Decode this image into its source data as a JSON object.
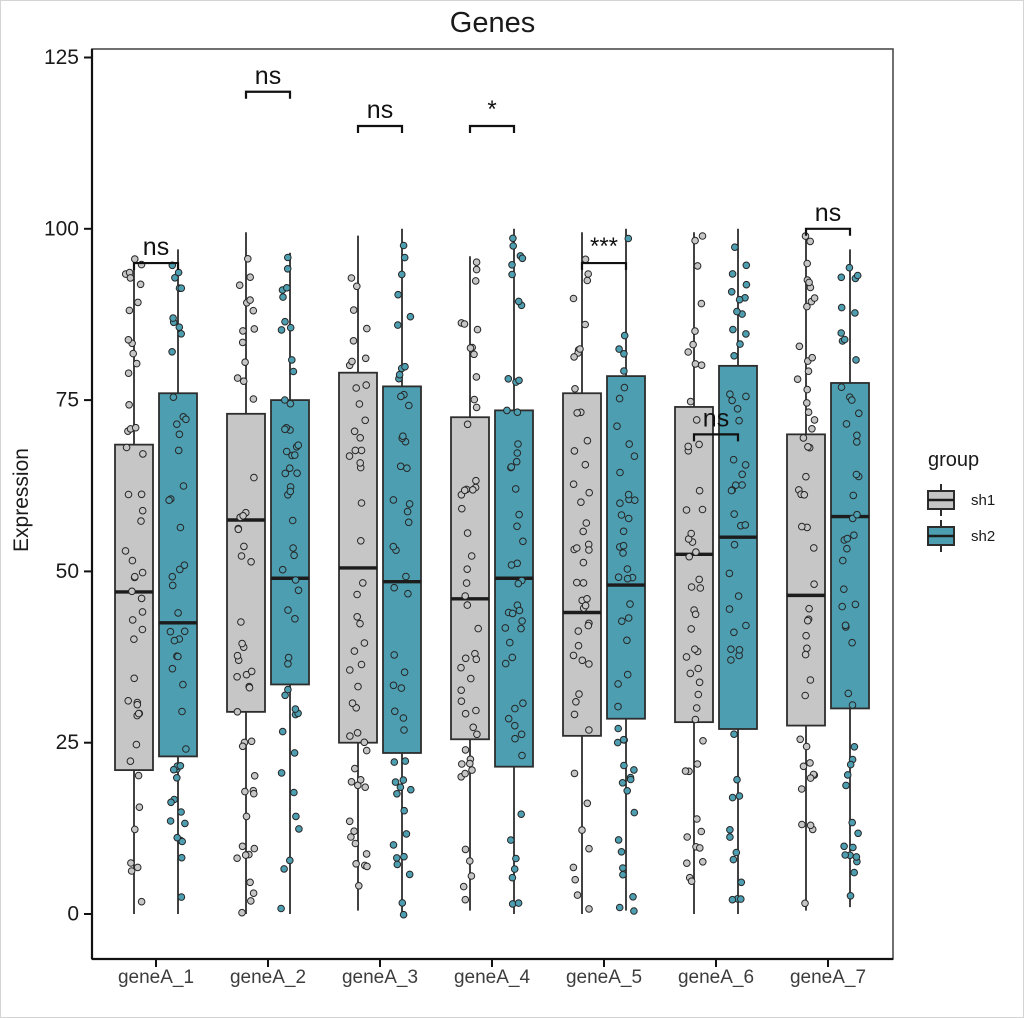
{
  "title": "Genes",
  "y_axis": {
    "label": "Expression",
    "ticks": [
      0,
      25,
      50,
      75,
      100,
      125
    ]
  },
  "x_axis": {
    "categories": [
      "geneA_1",
      "geneA_2",
      "geneA_3",
      "geneA_4",
      "geneA_5",
      "geneA_6",
      "geneA_7"
    ]
  },
  "legend": {
    "title": "group",
    "entries": [
      {
        "label": "sh1",
        "color": "#c6c6c6"
      },
      {
        "label": "sh2",
        "color": "#4d9eb0"
      }
    ]
  },
  "style": {
    "box_stroke": "#2d2d2d",
    "median_color": "#1c1c1c",
    "whisker_color": "#2d2d2d",
    "point_stroke": "#262626",
    "panel_border": "#4d4d4d",
    "axis_line": "#111111",
    "tick_label_color": "#1a1a1a",
    "x_label_color": "#3d3d3d",
    "background": "#ffffff"
  },
  "chart_data": {
    "type": "boxplot",
    "subtype": "grouped boxplot with jittered points and significance brackets",
    "title": "Genes",
    "xlabel": "",
    "ylabel": "Expression",
    "ylim": [
      0,
      125
    ],
    "grid": false,
    "legend_position": "right",
    "categories": [
      "geneA_1",
      "geneA_2",
      "geneA_3",
      "geneA_4",
      "geneA_5",
      "geneA_6",
      "geneA_7"
    ],
    "groups": [
      {
        "name": "sh1",
        "fill": "#c6c6c6"
      },
      {
        "name": "sh2",
        "fill": "#4d9eb0"
      }
    ],
    "boxes": [
      {
        "category": "geneA_1",
        "group": "sh1",
        "whisker_low": 0,
        "q1": 21,
        "median": 47,
        "q3": 68.5,
        "whisker_high": 96
      },
      {
        "category": "geneA_1",
        "group": "sh2",
        "whisker_low": 0,
        "q1": 23,
        "median": 42.5,
        "q3": 76,
        "whisker_high": 97
      },
      {
        "category": "geneA_2",
        "group": "sh1",
        "whisker_low": 0,
        "q1": 29.5,
        "median": 57.5,
        "q3": 73,
        "whisker_high": 99.5
      },
      {
        "category": "geneA_2",
        "group": "sh2",
        "whisker_low": 0,
        "q1": 33.5,
        "median": 49,
        "q3": 75,
        "whisker_high": 96.5
      },
      {
        "category": "geneA_3",
        "group": "sh1",
        "whisker_low": 0.5,
        "q1": 25,
        "median": 50.5,
        "q3": 79,
        "whisker_high": 99
      },
      {
        "category": "geneA_3",
        "group": "sh2",
        "whisker_low": 0,
        "q1": 23.5,
        "median": 48.5,
        "q3": 77,
        "whisker_high": 100
      },
      {
        "category": "geneA_4",
        "group": "sh1",
        "whisker_low": 0.5,
        "q1": 25.5,
        "median": 46,
        "q3": 72.5,
        "whisker_high": 96
      },
      {
        "category": "geneA_4",
        "group": "sh2",
        "whisker_low": 0,
        "q1": 21.5,
        "median": 49,
        "q3": 73.5,
        "whisker_high": 100
      },
      {
        "category": "geneA_5",
        "group": "sh1",
        "whisker_low": 0,
        "q1": 26,
        "median": 44,
        "q3": 76,
        "whisker_high": 99.5
      },
      {
        "category": "geneA_5",
        "group": "sh2",
        "whisker_low": 0.5,
        "q1": 28.5,
        "median": 48,
        "q3": 78.5,
        "whisker_high": 100
      },
      {
        "category": "geneA_6",
        "group": "sh1",
        "whisker_low": 0,
        "q1": 28,
        "median": 52.5,
        "q3": 74,
        "whisker_high": 99.5
      },
      {
        "category": "geneA_6",
        "group": "sh2",
        "whisker_low": 0,
        "q1": 27,
        "median": 55,
        "q3": 80,
        "whisker_high": 100
      },
      {
        "category": "geneA_7",
        "group": "sh1",
        "whisker_low": 0.5,
        "q1": 27.5,
        "median": 46.5,
        "q3": 70,
        "whisker_high": 100
      },
      {
        "category": "geneA_7",
        "group": "sh2",
        "whisker_low": 1,
        "q1": 30,
        "median": 58,
        "q3": 77.5,
        "whisker_high": 97
      }
    ],
    "jitter_points_per_box": 50,
    "jitter_note": "each box overlaid with ~50 jittered sample points spanning whisker range",
    "significance": [
      {
        "category": "geneA_1",
        "label": "ns",
        "bracket_y": 95
      },
      {
        "category": "geneA_2",
        "label": "ns",
        "bracket_y": 120
      },
      {
        "category": "geneA_3",
        "label": "ns",
        "bracket_y": 115
      },
      {
        "category": "geneA_4",
        "label": "*",
        "bracket_y": 115
      },
      {
        "category": "geneA_5",
        "label": "***",
        "bracket_y": 95
      },
      {
        "category": "geneA_6",
        "label": "ns",
        "bracket_y": 70
      },
      {
        "category": "geneA_7",
        "label": "ns",
        "bracket_y": 100
      }
    ]
  }
}
